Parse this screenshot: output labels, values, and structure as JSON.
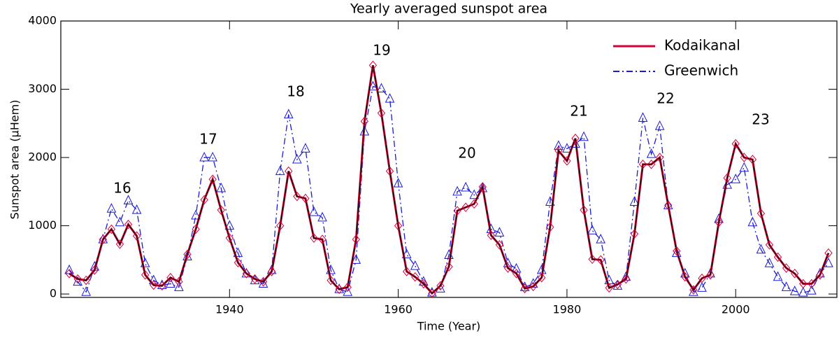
{
  "chart_data": {
    "type": "line",
    "title": "Yearly averaged sunspot area",
    "xlabel": "Time (Year)",
    "ylabel": "Sunspot area (μHem)",
    "x": [
      1921,
      1922,
      1923,
      1924,
      1925,
      1926,
      1927,
      1928,
      1929,
      1930,
      1931,
      1932,
      1933,
      1934,
      1935,
      1936,
      1937,
      1938,
      1939,
      1940,
      1941,
      1942,
      1943,
      1944,
      1945,
      1946,
      1947,
      1948,
      1949,
      1950,
      1951,
      1952,
      1953,
      1954,
      1955,
      1956,
      1957,
      1958,
      1959,
      1960,
      1961,
      1962,
      1963,
      1964,
      1965,
      1966,
      1967,
      1968,
      1969,
      1970,
      1971,
      1972,
      1973,
      1974,
      1975,
      1976,
      1977,
      1978,
      1979,
      1980,
      1981,
      1982,
      1983,
      1984,
      1985,
      1986,
      1987,
      1988,
      1989,
      1990,
      1991,
      1992,
      1993,
      1994,
      1995,
      1996,
      1997,
      1998,
      1999,
      2000,
      2001,
      2002,
      2003,
      2004,
      2005,
      2006,
      2007,
      2008,
      2009,
      2010,
      2011
    ],
    "series": [
      {
        "name": "Kodaikanal",
        "color": "#d6003a",
        "marker": "diamond",
        "dash": "solid",
        "values": [
          300,
          220,
          200,
          350,
          800,
          950,
          730,
          1020,
          850,
          280,
          130,
          120,
          240,
          180,
          580,
          950,
          1380,
          1680,
          1230,
          820,
          460,
          300,
          220,
          180,
          330,
          1000,
          1800,
          1430,
          1400,
          820,
          800,
          200,
          70,
          100,
          800,
          2530,
          3350,
          2650,
          1800,
          1000,
          330,
          250,
          150,
          10,
          120,
          400,
          1220,
          1270,
          1320,
          1570,
          860,
          720,
          380,
          300,
          80,
          110,
          240,
          980,
          2100,
          1950,
          2280,
          1230,
          510,
          500,
          90,
          140,
          220,
          880,
          1900,
          1900,
          2000,
          1300,
          630,
          250,
          60,
          230,
          280,
          1050,
          1700,
          2200,
          2000,
          1970,
          1180,
          720,
          540,
          380,
          300,
          150,
          150,
          280,
          600
        ]
      },
      {
        "name": "Greenwich",
        "color": "#1a1adc",
        "marker": "triangle",
        "dash": "dashdot",
        "values": [
          350,
          180,
          30,
          400,
          800,
          1250,
          1050,
          1370,
          1230,
          450,
          200,
          130,
          150,
          100,
          550,
          1150,
          2000,
          2000,
          1550,
          1000,
          600,
          300,
          200,
          150,
          350,
          1800,
          2630,
          1970,
          2130,
          1200,
          1120,
          350,
          70,
          30,
          500,
          2380,
          3040,
          3010,
          2860,
          1620,
          580,
          410,
          180,
          20,
          80,
          570,
          1500,
          1560,
          1450,
          1550,
          950,
          900,
          450,
          370,
          100,
          150,
          350,
          1350,
          2170,
          2130,
          2200,
          2300,
          930,
          800,
          200,
          120,
          250,
          1350,
          2580,
          2050,
          2460,
          1300,
          600,
          300,
          30,
          90,
          300,
          1100,
          1600,
          1680,
          1850,
          1050,
          650,
          450,
          250,
          100,
          40,
          20,
          50,
          300,
          450
        ]
      }
    ],
    "annotations": [
      "16",
      "17",
      "18",
      "19",
      "20",
      "21",
      "22",
      "23"
    ],
    "xlim": [
      1920,
      2012
    ],
    "xticks": [
      1940,
      1960,
      1980,
      2000
    ],
    "ylim": [
      -50,
      4000
    ],
    "yticks": [
      0,
      1000,
      2000,
      3000,
      4000
    ],
    "legend": "upper right"
  }
}
